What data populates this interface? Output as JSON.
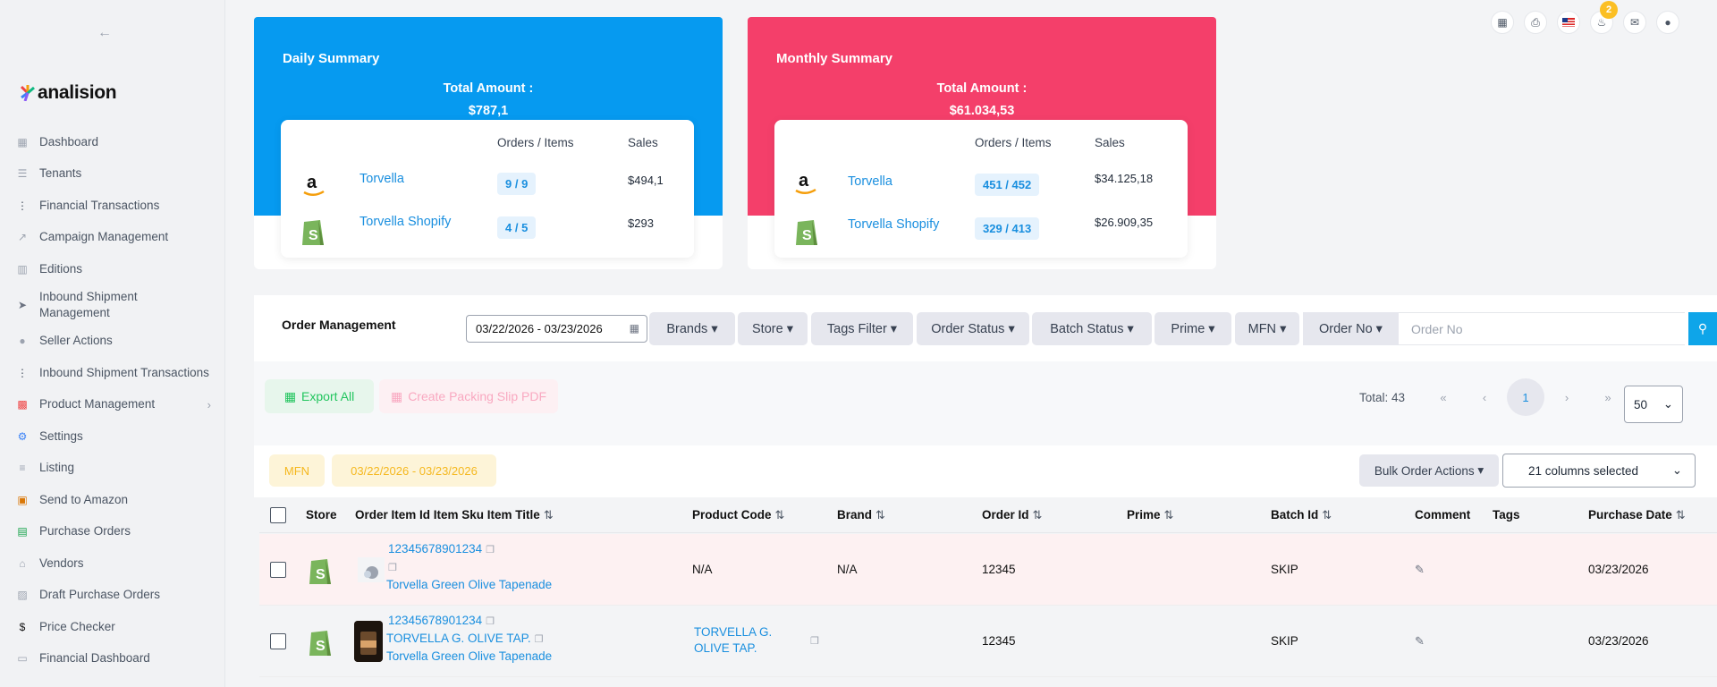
{
  "sidebar": {
    "back_icon": "arrow-left-icon",
    "logo_text": "analision",
    "items": [
      {
        "label": "Dashboard",
        "icon": "dashboard-icon"
      },
      {
        "label": "Tenants",
        "icon": "list-icon"
      },
      {
        "label": "Financial Transactions",
        "icon": "dots-vertical-icon"
      },
      {
        "label": "Campaign Management",
        "icon": "chart-icon"
      },
      {
        "label": "Editions",
        "icon": "grid-icon"
      },
      {
        "label": "Inbound Shipment Management",
        "icon": "send-icon"
      },
      {
        "label": "Seller Actions",
        "icon": "user-icon"
      },
      {
        "label": "Inbound Shipment Transactions",
        "icon": "dots-vertical-icon"
      },
      {
        "label": "Product Management",
        "icon": "product-icon"
      },
      {
        "label": "Settings",
        "icon": "gears-icon"
      },
      {
        "label": "Listing",
        "icon": "listing-icon"
      },
      {
        "label": "Send to Amazon",
        "icon": "box-icon"
      },
      {
        "label": "Purchase Orders",
        "icon": "receipt-icon"
      },
      {
        "label": "Vendors",
        "icon": "home-icon"
      },
      {
        "label": "Draft Purchase Orders",
        "icon": "building-icon"
      },
      {
        "label": "Price Checker",
        "icon": "dollar-icon"
      },
      {
        "label": "Financial Dashboard",
        "icon": "finance-icon"
      }
    ]
  },
  "top_icons": {
    "notification_count": "2",
    "icons": [
      "calculator-icon",
      "printer-icon",
      "flag-us-icon",
      "bell-icon",
      "chat-icon",
      "user-icon"
    ]
  },
  "daily": {
    "title": "Daily Summary",
    "total_label": "Total Amount :",
    "total_value": "$787,1",
    "col_orders": "Orders / Items",
    "col_sales": "Sales",
    "rows": [
      {
        "store": "Torvella",
        "orders": "9 / 9",
        "sales": "$494,1"
      },
      {
        "store": "Torvella Shopify",
        "orders": "4 / 5",
        "sales": "$293"
      }
    ]
  },
  "monthly": {
    "title": "Monthly Summary",
    "total_label": "Total Amount :",
    "total_value": "$61.034,53",
    "col_orders": "Orders / Items",
    "col_sales": "Sales",
    "rows": [
      {
        "store": "Torvella",
        "orders": "451 / 452",
        "sales": "$34.125,18"
      },
      {
        "store": "Torvella Shopify",
        "orders": "329 / 413",
        "sales": "$26.909,35"
      }
    ]
  },
  "colors": {
    "daily": "#069af0",
    "monthly": "#f43f6a",
    "link": "#1a8fdf"
  },
  "order_management": {
    "title": "Order Management",
    "date_range": "03/22/2026 - 03/23/2026",
    "filters": [
      "Brands",
      "Store",
      "Tags Filter",
      "Order Status",
      "Batch Status",
      "Prime",
      "MFN",
      "Order No"
    ],
    "order_no_placeholder": "Order No"
  },
  "actions": {
    "export_label": "Export All",
    "pdf_label": "Create Packing Slip PDF",
    "total_text": "Total: 43",
    "current_page": "1",
    "per_page": "50"
  },
  "chips": {
    "mfn": "MFN",
    "date": "03/22/2026 - 03/23/2026",
    "bulk_label": "Bulk Order Actions",
    "columns_selected": "21 columns selected"
  },
  "table": {
    "headers": {
      "store": "Store",
      "item": "Order Item Id Item Sku Item Title",
      "product_code": "Product Code",
      "brand": "Brand",
      "order_id": "Order Id",
      "prime": "Prime",
      "batch_id": "Batch Id",
      "comment": "Comment",
      "tags": "Tags",
      "purchase_date": "Purchase Date"
    },
    "rows": [
      {
        "item_id": "12345678901234",
        "sku": "",
        "title": "Torvella Green Olive Tapenade",
        "product_code": "N/A",
        "brand": "N/A",
        "order_id": "12345",
        "batch_id": "SKIP",
        "purchase_date": "03/23/2026"
      },
      {
        "item_id": "12345678901234",
        "sku": "TORVELLA G. OLIVE TAP.",
        "title": "Torvella Green Olive Tapenade",
        "product_code": "TORVELLA G. OLIVE TAP.",
        "brand": "",
        "order_id": "12345",
        "batch_id": "SKIP",
        "purchase_date": "03/23/2026"
      }
    ]
  }
}
